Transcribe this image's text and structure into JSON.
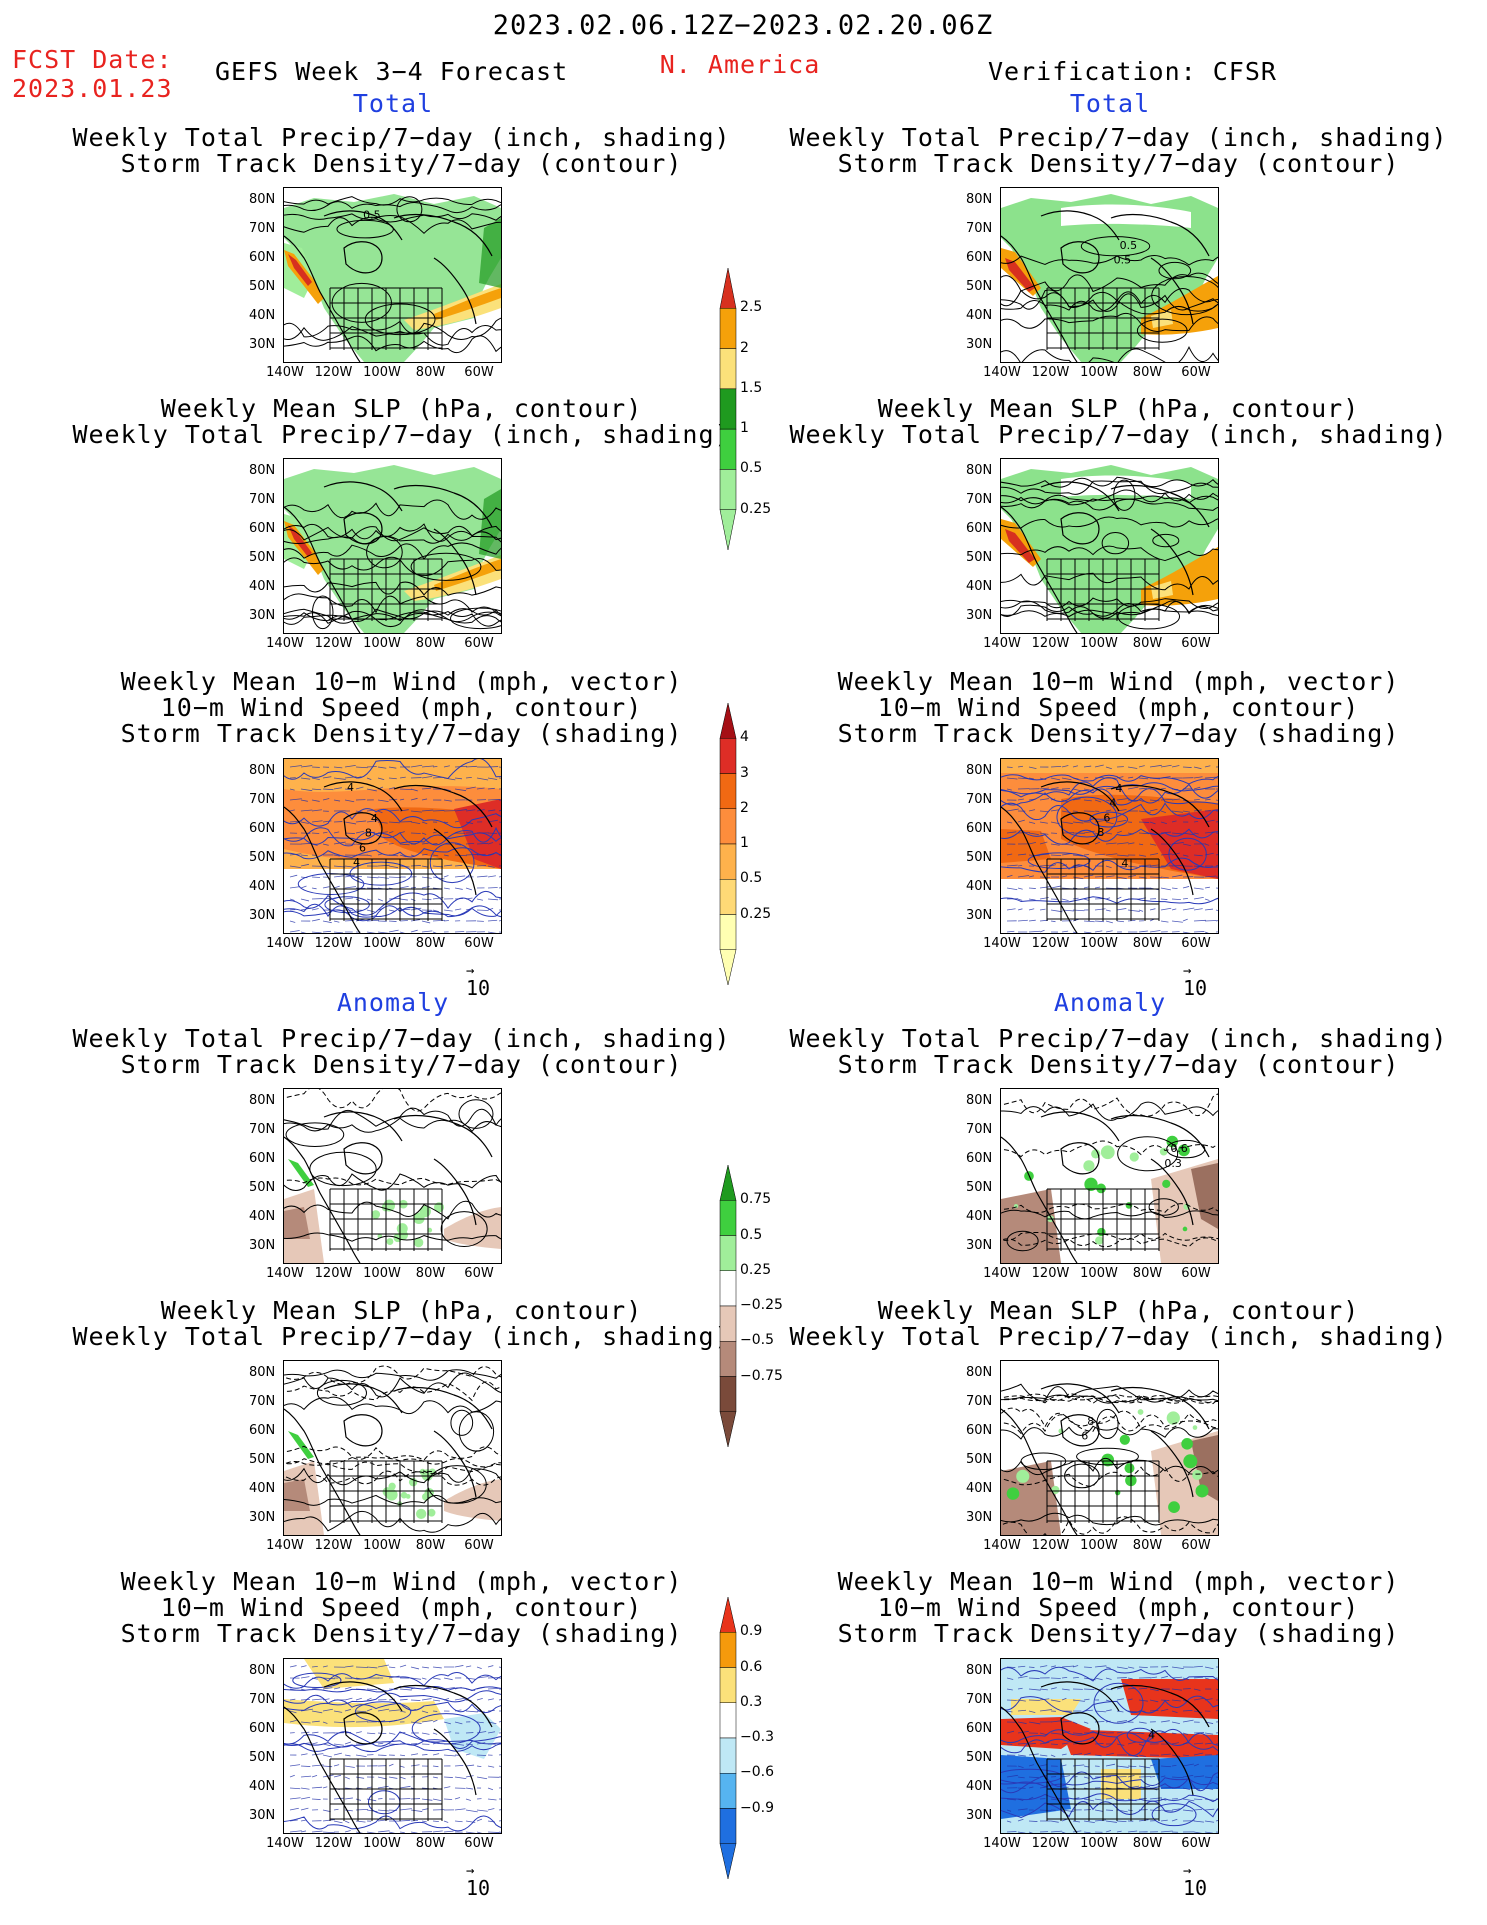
{
  "header": {
    "date_range": "2023.02.06.12Z−2023.02.20.06Z",
    "fcst_label": "FCST Date:",
    "fcst_date": "2023.01.23",
    "forecast_name": "GEFS Week 3−4 Forecast",
    "region": "N. America",
    "verification": "Verification: CFSR"
  },
  "sections": {
    "total": "Total",
    "anomaly": "Anomaly"
  },
  "titles": {
    "precip_storm": [
      "Weekly Total Precip/7−day (inch, shading)",
      "Storm Track Density/7−day (contour)"
    ],
    "slp_precip": [
      "Weekly Mean SLP (hPa, contour)",
      "Weekly Total Precip/7−day (inch, shading)"
    ],
    "wind_storm": [
      "Weekly Mean 10−m Wind (mph, vector)",
      "10−m Wind Speed (mph, contour)",
      "Storm Track Density/7−day (shading)"
    ]
  },
  "axes": {
    "lat_ticks": [
      "80N",
      "70N",
      "60N",
      "50N",
      "40N",
      "30N"
    ],
    "lon_ticks": [
      "140W",
      "120W",
      "100W",
      "80W",
      "60W"
    ]
  },
  "vector_ref": "10",
  "colorbars": {
    "precip_total": {
      "labels": [
        "2.5",
        "2",
        "1.5",
        "1",
        "0.5",
        "0.25"
      ],
      "colors": [
        "#d7301f",
        "#f5a10a",
        "#fbe17a",
        "#1f9a1f",
        "#3fcf3f",
        "#a0ee9a"
      ]
    },
    "storm_total": {
      "labels": [
        "4",
        "3",
        "2",
        "1",
        "0.5",
        "0.25"
      ],
      "colors": [
        "#a50f15",
        "#de2d26",
        "#f16913",
        "#fd8d3c",
        "#feb24c",
        "#fed976",
        "#ffffb2"
      ]
    },
    "precip_anom": {
      "labels": [
        "0.75",
        "0.5",
        "0.25",
        "−0.25",
        "−0.5",
        "−0.75"
      ],
      "colors": [
        "#1f9a1f",
        "#3fcf3f",
        "#a0ee9a",
        "#ffffff",
        "#e6c8b8",
        "#b58a7a",
        "#7a4a3a"
      ]
    },
    "storm_anom": {
      "labels": [
        "0.9",
        "0.6",
        "0.3",
        "−0.3",
        "−0.6",
        "−0.9"
      ],
      "colors": [
        "#e8341c",
        "#f59a0c",
        "#fbe17a",
        "#ffffff",
        "#bfe8f5",
        "#56b4f0",
        "#1f6fe0"
      ]
    }
  },
  "panels": [
    {
      "id": "fcst-total-precip-storm",
      "column": "GEFS",
      "section": "Total",
      "title": "precip_storm",
      "labels": [
        "0.5"
      ]
    },
    {
      "id": "verif-total-precip-storm",
      "column": "CFSR",
      "section": "Total",
      "title": "precip_storm",
      "labels": [
        "0.5",
        "0.5"
      ]
    },
    {
      "id": "fcst-total-slp-precip",
      "column": "GEFS",
      "section": "Total",
      "title": "slp_precip",
      "labels": []
    },
    {
      "id": "verif-total-slp-precip",
      "column": "CFSR",
      "section": "Total",
      "title": "slp_precip",
      "labels": []
    },
    {
      "id": "fcst-total-wind-storm",
      "column": "GEFS",
      "section": "Total",
      "title": "wind_storm",
      "labels": [
        "4",
        "4",
        "6",
        "8",
        "4"
      ]
    },
    {
      "id": "verif-total-wind-storm",
      "column": "CFSR",
      "section": "Total",
      "title": "wind_storm",
      "labels": [
        "8",
        "6",
        "4",
        "4",
        "4"
      ]
    },
    {
      "id": "fcst-anom-precip-storm",
      "column": "GEFS",
      "section": "Anomaly",
      "title": "precip_storm",
      "labels": []
    },
    {
      "id": "verif-anom-precip-storm",
      "column": "CFSR",
      "section": "Anomaly",
      "title": "precip_storm",
      "labels": [
        "0.3",
        "0.6"
      ]
    },
    {
      "id": "fcst-anom-slp-precip",
      "column": "GEFS",
      "section": "Anomaly",
      "title": "slp_precip",
      "labels": []
    },
    {
      "id": "verif-anom-slp-precip",
      "column": "CFSR",
      "section": "Anomaly",
      "title": "slp_precip",
      "labels": [
        "6",
        "8"
      ]
    },
    {
      "id": "fcst-anom-wind-storm",
      "column": "GEFS",
      "section": "Anomaly",
      "title": "wind_storm",
      "labels": []
    },
    {
      "id": "verif-anom-wind-storm",
      "column": "CFSR",
      "section": "Anomaly",
      "title": "wind_storm",
      "labels": [
        "4"
      ]
    }
  ]
}
